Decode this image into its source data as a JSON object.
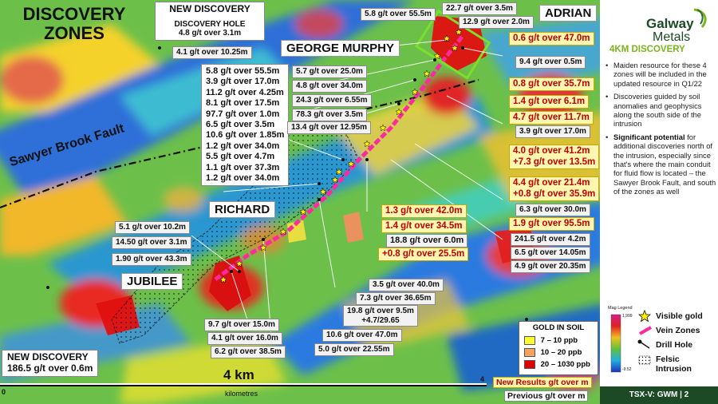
{
  "title": "DISCOVERY ZONES",
  "map": {
    "fault_label": "Sawyer Brook Fault",
    "zones": {
      "adrian": "ADRIAN",
      "george_murphy": "GEORGE MURPHY",
      "richard": "RICHARD",
      "jubilee": "JUBILEE"
    },
    "new_discovery_top": {
      "heading": "NEW DISCOVERY",
      "subheading": "DISCOVERY HOLE",
      "line1": "4.8 g/t over 3.1m",
      "line2": "4.1 g/t over 10.25m"
    },
    "new_discovery_bottom": {
      "heading": "NEW DISCOVERY",
      "line1": "186.5 g/t over 0.6m"
    },
    "gm_stack": [
      "5.8 g/t over 55.5m",
      "3.9 g/t over 17.0m",
      "11.2 g/t over 4.25m",
      "8.1 g/t over 17.5m",
      "97.7 g/t over 1.0m",
      "6.5 g/t over 3.5m",
      "10.6 g/t over 1.85m",
      "1.2 g/t over 34.0m",
      "5.5 g/t over 4.7m",
      "1.1 g/t over 37.3m",
      "1.2 g/t over 34.0m"
    ],
    "gm_right": [
      "5.7 g/t over 25.0m",
      "4.8 g/t over 34.0m",
      "24.3 g/t over 6.55m",
      "78.3 g/t over 3.5m",
      "13.4 g/t over 12.95m"
    ],
    "top_right": [
      "5.8 g/t over 55.5m",
      "22.7 g/t over 3.5m",
      "12.9 g/t over 2.0m"
    ],
    "right_labels": {
      "r1": "0.6 g/t over 47.0m",
      "r2": "9.4 g/t over 0.5m",
      "r3": "0.8 g/t over 35.7m",
      "r4": "1.4 g/t over 6.1m",
      "r5": "4.7 g/t over 11.7m",
      "r6": "3.9 g/t over 17.0m",
      "r7a": "4.0 g/t over 41.2m",
      "r7b": "+7.3 g/t over 13.5m",
      "r8a": "4.4 g/t over 21.4m",
      "r8b": "+0.8 g/t over 35.9m",
      "r9": "6.3 g/t over 30.0m",
      "r10": "1.9 g/t over 95.5m",
      "r11": "241.5 g/t over 4.2m",
      "r12": "6.5 g/t over 14.05m",
      "r13": "4.9 g/t over 20.35m"
    },
    "center_labels": {
      "c1": "1.3 g/t over 42.0m",
      "c2": "1.4 g/t over 34.5m",
      "c3": "18.8 g/t over 6.0m",
      "c4": "+0.8 g/t over 25.5m"
    },
    "richard_labels": {
      "a": "5.1 g/t over 10.2m",
      "b": "14.50 g/t over 3.1m",
      "c": "1.90 g/t over 43.3m"
    },
    "bottom_labels": {
      "b1": "3.5 g/t over 40.0m",
      "b2": "7.3 g/t over 36.65m",
      "b3a": "19.8 g/t over 9.5m",
      "b3b": "+4.7/29.65",
      "b4": "10.6 g/t over 47.0m",
      "b5": "5.0 g/t over 22.55m",
      "b6": "9.7 g/t over 15.0m",
      "b7": "4.1 g/t over 16.0m",
      "b8": "6.2 g/t over 38.5m"
    },
    "soil_legend": {
      "title": "GOLD IN SOIL",
      "items": [
        {
          "label": "7 – 10 ppb",
          "color": "#ffff33"
        },
        {
          "label": "10 – 20 ppb",
          "color": "#f4a460"
        },
        {
          "label": "20 – 1030 ppb",
          "color": "#e00000"
        }
      ]
    },
    "scale": {
      "label": "4 km",
      "zero": "0",
      "end": "4",
      "units": "kilometres"
    },
    "key": {
      "new": "New Results g/t over m",
      "previous": "Previous g/t over m"
    }
  },
  "sidebar": {
    "logo_line1": "Galway",
    "logo_line2": "Metals",
    "heading": "4KM DISCOVERY",
    "bullets": [
      {
        "text": "Maiden resource for these 4 zones will be included in the updated resource in Q1/22"
      },
      {
        "text": "Discoveries guided by soil anomalies and geophysics along the south side of the intrusion"
      },
      {
        "bold": "Significant potential",
        "text": " for additional discoveries north of the intrusion, especially since that's where the main conduit for fluid flow is located – the Sawyer Brook Fault, and south of the zones as well"
      }
    ],
    "legend": {
      "mag_title": "Mag Legend",
      "mag_max": "1,999",
      "mag_min": "-9.52",
      "items": [
        "Visible gold",
        "Vein Zones",
        "Drill Hole",
        "Felsic Intrusion"
      ]
    },
    "footer": "TSX-V: GWM  |  2"
  }
}
